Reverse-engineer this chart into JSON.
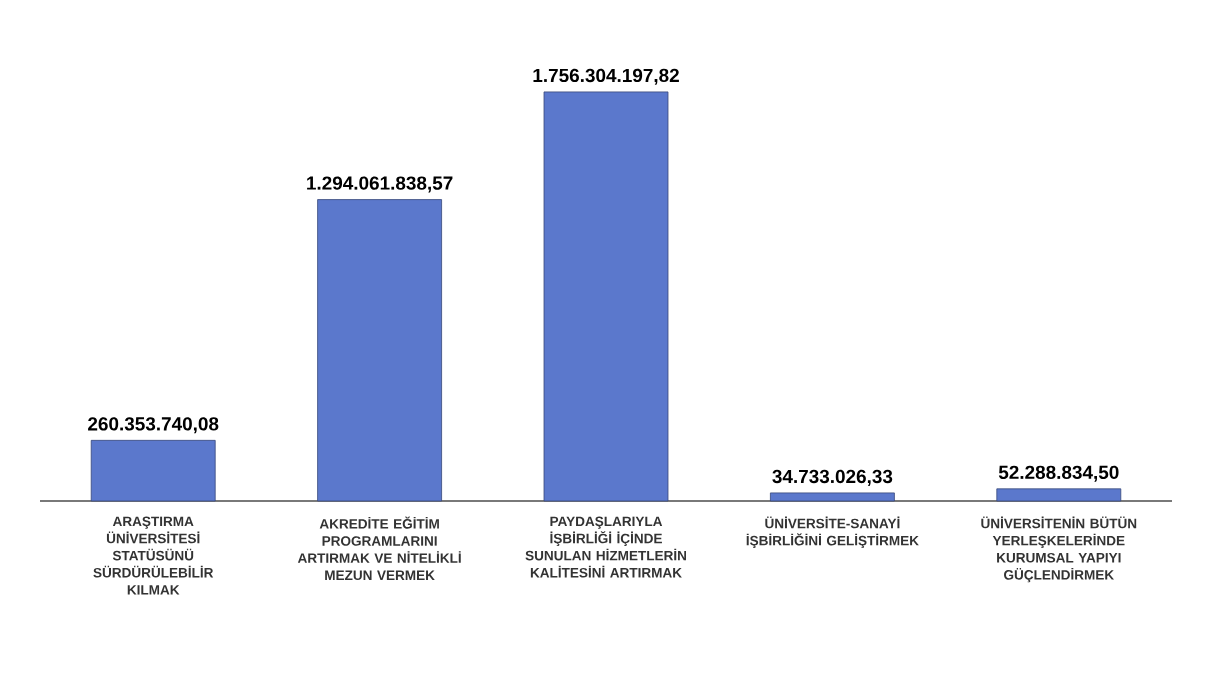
{
  "chart_data": {
    "type": "bar",
    "categories": [
      "ARAŞTIRMA ÜNİVERSİTESİ STATÜSÜNÜ SÜRDÜRÜLEBİLİR KILMAK",
      "AKREDİTE EĞİTİM PROGRAMLARINI ARTIRMAK VE NİTELİKLİ MEZUN VERMEK",
      "PAYDAŞLARIYLA İŞBİRLİĞİ İÇİNDE SUNULAN HİZMETLERİN KALİTESİNİ ARTIRMAK",
      "ÜNİVERSİTE-SANAYİ İŞBİRLİĞİNİ GELİŞTİRMEK",
      "ÜNİVERSİTENİN BÜTÜN YERLEŞKELERİNDE KURUMSAL YAPIYI GÜÇLENDİRMEK"
    ],
    "values": [
      260353740.08,
      1294061838.57,
      1756304197.82,
      34733026.33,
      52288834.5
    ],
    "value_labels": [
      "260.353.740,08",
      "1.294.061.838,57",
      "1.756.304.197,82",
      "34.733.026,33",
      "52.288.834,50"
    ],
    "color": "#5b78cc"
  }
}
